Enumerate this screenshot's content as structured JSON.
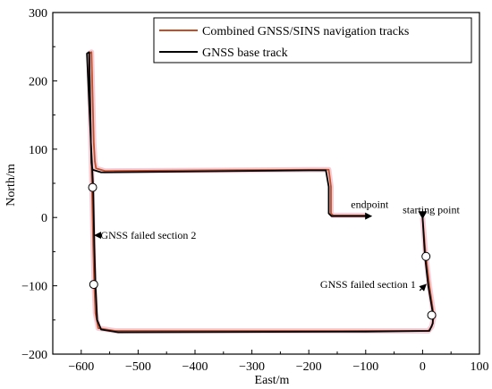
{
  "chart_data": {
    "type": "line",
    "xlabel": "East/m",
    "ylabel": "North/m",
    "xlim": [
      -650,
      100
    ],
    "ylim": [
      -200,
      300
    ],
    "xticks": [
      -600,
      -500,
      -400,
      -300,
      -200,
      -100,
      0,
      100
    ],
    "yticks": [
      -200,
      -100,
      0,
      100,
      200,
      300
    ],
    "legend_position": "top-right",
    "series": [
      {
        "name": "Combined GNSS/SINS navigation tracks",
        "color": "#c0502a",
        "x": [
          0,
          5,
          12,
          20,
          16,
          10,
          -100,
          -540,
          -570,
          -575,
          -577,
          -579,
          -581,
          -583,
          -586,
          -582,
          -578,
          -576,
          -574,
          -558,
          -200,
          -165,
          -161,
          -161,
          -157,
          -100
        ],
        "y": [
          0,
          -50,
          -100,
          -145,
          -160,
          -166,
          -166,
          -166,
          -162,
          -140,
          -100,
          -40,
          40,
          110,
          240,
          242,
          110,
          82,
          72,
          68,
          70,
          70,
          45,
          6,
          3,
          3
        ]
      },
      {
        "name": "GNSS base track",
        "color": "#000000",
        "x": [
          0,
          4,
          10,
          18,
          18,
          12,
          -100,
          -535,
          -565,
          -572,
          -575,
          -577,
          -579,
          -583,
          -590,
          -586,
          -583,
          -582,
          -580,
          -565,
          -200,
          -170,
          -165,
          -165,
          -160,
          -100
        ],
        "y": [
          0,
          -55,
          -100,
          -140,
          -155,
          -166,
          -167,
          -168,
          -164,
          -150,
          -98,
          -40,
          44,
          110,
          240,
          242,
          110,
          80,
          70,
          66,
          69,
          69,
          45,
          6,
          2,
          2
        ]
      }
    ],
    "markers": {
      "start_triangle": {
        "x": 0,
        "y": 0
      },
      "circles": [
        {
          "x": -580,
          "y": 44
        },
        {
          "x": -578,
          "y": -98
        },
        {
          "x": 6,
          "y": -57
        },
        {
          "x": 16,
          "y": -143
        }
      ]
    },
    "annotations": [
      {
        "text": "endpoint",
        "x": -126,
        "y": 14,
        "arrow_to": [
          -90,
          2
        ]
      },
      {
        "text": "starting point",
        "x": -35,
        "y": 6
      },
      {
        "text": "GNSS failed section 2",
        "x": -566,
        "y": -26,
        "arrow_to": [
          -576,
          -26
        ]
      },
      {
        "text": "GNSS failed section 1",
        "x": -180,
        "y": -103,
        "arrow_to": [
          6,
          -98
        ]
      }
    ]
  }
}
